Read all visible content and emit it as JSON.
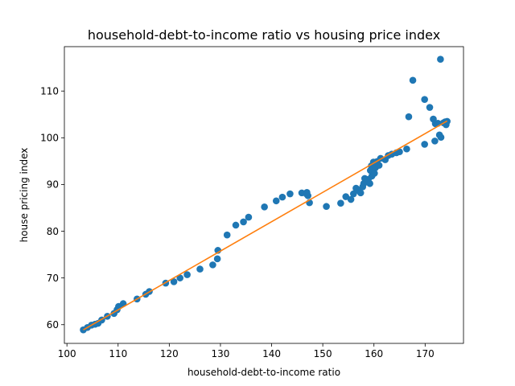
{
  "chart_data": {
    "type": "scatter",
    "title": "household-debt-to-income ratio vs housing price index",
    "xlabel": "household-debt-to-income ratio",
    "ylabel": "house pricing index",
    "xlim": [
      99.5,
      177.5
    ],
    "ylim": [
      56.0,
      119.5
    ],
    "xticks": [
      100,
      110,
      120,
      130,
      140,
      150,
      160,
      170
    ],
    "yticks": [
      60,
      70,
      80,
      90,
      100,
      110
    ],
    "grid": false,
    "colors": {
      "points": "#1f77b4",
      "fit_line": "#ff7f0e"
    },
    "series": [
      {
        "kind": "points",
        "points": [
          [
            103.2,
            58.9
          ],
          [
            104.0,
            59.4
          ],
          [
            104.8,
            59.9
          ],
          [
            105.5,
            60.1
          ],
          [
            106.1,
            60.3
          ],
          [
            106.8,
            61.0
          ],
          [
            107.9,
            61.8
          ],
          [
            109.2,
            62.4
          ],
          [
            109.8,
            63.2
          ],
          [
            110.1,
            63.9
          ],
          [
            111.0,
            64.5
          ],
          [
            113.7,
            65.5
          ],
          [
            115.4,
            66.5
          ],
          [
            116.1,
            67.1
          ],
          [
            119.3,
            68.9
          ],
          [
            120.9,
            69.2
          ],
          [
            122.1,
            70.0
          ],
          [
            123.5,
            70.7
          ],
          [
            126.0,
            71.9
          ],
          [
            128.5,
            72.8
          ],
          [
            129.4,
            74.1
          ],
          [
            129.5,
            75.9
          ],
          [
            131.3,
            79.2
          ],
          [
            133.0,
            81.3
          ],
          [
            134.5,
            82.0
          ],
          [
            135.5,
            83.0
          ],
          [
            138.6,
            85.2
          ],
          [
            140.9,
            86.5
          ],
          [
            142.1,
            87.3
          ],
          [
            143.6,
            88.0
          ],
          [
            145.9,
            88.2
          ],
          [
            146.8,
            88.0
          ],
          [
            147.1,
            87.6
          ],
          [
            147.4,
            86.1
          ],
          [
            146.9,
            88.3
          ],
          [
            150.7,
            85.3
          ],
          [
            153.5,
            86.0
          ],
          [
            154.5,
            87.4
          ],
          [
            155.5,
            86.8
          ],
          [
            156.0,
            88.0
          ],
          [
            156.5,
            89.2
          ],
          [
            157.0,
            88.7
          ],
          [
            157.4,
            88.2
          ],
          [
            157.8,
            89.5
          ],
          [
            158.0,
            90.2
          ],
          [
            158.2,
            91.3
          ],
          [
            158.6,
            90.6
          ],
          [
            158.9,
            91.1
          ],
          [
            159.2,
            90.2
          ],
          [
            159.3,
            93.0
          ],
          [
            159.5,
            94.0
          ],
          [
            159.6,
            91.8
          ],
          [
            159.9,
            94.8
          ],
          [
            160.1,
            92.4
          ],
          [
            160.3,
            93.6
          ],
          [
            160.6,
            94.9
          ],
          [
            161.0,
            94.1
          ],
          [
            161.3,
            95.6
          ],
          [
            162.2,
            95.3
          ],
          [
            162.8,
            96.2
          ],
          [
            163.5,
            96.5
          ],
          [
            164.4,
            96.8
          ],
          [
            165.0,
            97.0
          ],
          [
            166.4,
            97.6
          ],
          [
            166.8,
            104.5
          ],
          [
            167.6,
            112.3
          ],
          [
            169.9,
            98.6
          ],
          [
            169.9,
            108.2
          ],
          [
            170.9,
            106.5
          ],
          [
            171.6,
            104.0
          ],
          [
            171.9,
            99.3
          ],
          [
            172.0,
            103.0
          ],
          [
            172.5,
            103.1
          ],
          [
            172.8,
            100.6
          ],
          [
            173.0,
            116.8
          ],
          [
            173.1,
            100.1
          ],
          [
            173.6,
            103.2
          ],
          [
            173.9,
            103.4
          ],
          [
            174.1,
            102.8
          ],
          [
            174.3,
            103.5
          ]
        ]
      },
      {
        "kind": "fit_line",
        "points": [
          [
            103.2,
            58.9
          ],
          [
            174.3,
            103.6
          ]
        ]
      }
    ]
  }
}
